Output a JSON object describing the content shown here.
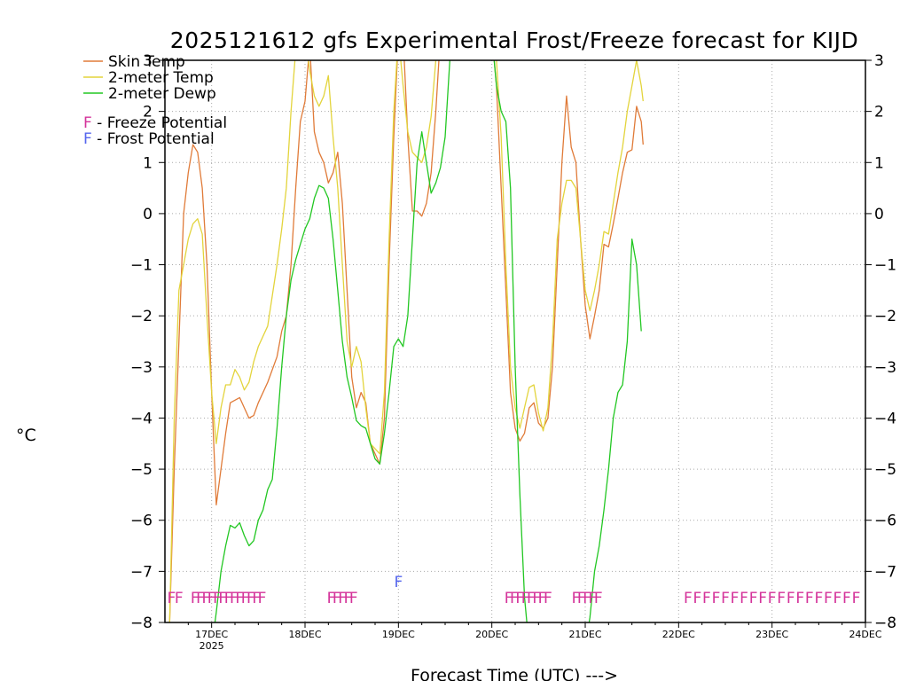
{
  "chart_data": {
    "type": "line",
    "title": "2025121612 gfs Experimental Frost/Freeze forecast for KIJD",
    "ylabel": "°C",
    "xlabel": "Forecast Time (UTC) --->",
    "ylim": [
      -8,
      3
    ],
    "xlim": [
      16.5,
      24.0
    ],
    "yticks": [
      -8,
      -7,
      -6,
      -5,
      -4,
      -3,
      -2,
      -1,
      0,
      1,
      2,
      3
    ],
    "ytick_labels": [
      "−8",
      "−7",
      "−6",
      "−5",
      "−4",
      "−3",
      "−2",
      "−1",
      "0",
      "1",
      "2",
      "3"
    ],
    "xticks": [
      {
        "x": 17,
        "label": "17DEC",
        "sublabel": "2025"
      },
      {
        "x": 18,
        "label": "18DEC"
      },
      {
        "x": 19,
        "label": "19DEC"
      },
      {
        "x": 20,
        "label": "20DEC"
      },
      {
        "x": 21,
        "label": "21DEC"
      },
      {
        "x": 22,
        "label": "22DEC"
      },
      {
        "x": 23,
        "label": "23DEC"
      },
      {
        "x": 24,
        "label": "24DEC"
      }
    ],
    "grid": true,
    "legend_position": "top-left",
    "series": [
      {
        "name": "Skin Temp",
        "color": "#e07b39",
        "points": [
          [
            16.5,
            -8.5
          ],
          [
            16.55,
            -8
          ],
          [
            16.6,
            -5
          ],
          [
            16.65,
            -2.5
          ],
          [
            16.7,
            0
          ],
          [
            16.75,
            0.8
          ],
          [
            16.8,
            1.35
          ],
          [
            16.85,
            1.2
          ],
          [
            16.9,
            0.5
          ],
          [
            16.95,
            -1
          ],
          [
            17.0,
            -3.5
          ],
          [
            17.05,
            -5.7
          ],
          [
            17.1,
            -5
          ],
          [
            17.15,
            -4.3
          ],
          [
            17.2,
            -3.7
          ],
          [
            17.3,
            -3.6
          ],
          [
            17.35,
            -3.8
          ],
          [
            17.4,
            -4
          ],
          [
            17.45,
            -3.95
          ],
          [
            17.5,
            -3.7
          ],
          [
            17.6,
            -3.3
          ],
          [
            17.7,
            -2.8
          ],
          [
            17.75,
            -2.3
          ],
          [
            17.8,
            -2.0
          ],
          [
            17.85,
            -1.0
          ],
          [
            17.9,
            0.5
          ],
          [
            17.95,
            1.8
          ],
          [
            18.0,
            2.2
          ],
          [
            18.05,
            3.3
          ],
          [
            18.1,
            1.6
          ],
          [
            18.15,
            1.2
          ],
          [
            18.2,
            1.0
          ],
          [
            18.25,
            0.6
          ],
          [
            18.3,
            0.8
          ],
          [
            18.35,
            1.2
          ],
          [
            18.4,
            0.2
          ],
          [
            18.45,
            -1.5
          ],
          [
            18.5,
            -3.2
          ],
          [
            18.55,
            -3.8
          ],
          [
            18.6,
            -3.5
          ],
          [
            18.65,
            -3.7
          ],
          [
            18.7,
            -4.5
          ],
          [
            18.8,
            -4.9
          ],
          [
            18.85,
            -4.0
          ],
          [
            18.9,
            -1
          ],
          [
            18.95,
            1.5
          ],
          [
            19.0,
            3.5
          ],
          [
            19.05,
            3.5
          ],
          [
            19.1,
            1.5
          ],
          [
            19.15,
            0.05
          ],
          [
            19.2,
            0.05
          ],
          [
            19.25,
            -0.05
          ],
          [
            19.3,
            0.2
          ],
          [
            19.35,
            0.8
          ],
          [
            19.4,
            2.0
          ],
          [
            19.45,
            3.5
          ],
          [
            20.0,
            3.5
          ],
          [
            20.05,
            2.5
          ],
          [
            20.1,
            0.5
          ],
          [
            20.15,
            -1.5
          ],
          [
            20.2,
            -3.5
          ],
          [
            20.25,
            -4.2
          ],
          [
            20.3,
            -4.45
          ],
          [
            20.35,
            -4.3
          ],
          [
            20.4,
            -3.8
          ],
          [
            20.45,
            -3.7
          ],
          [
            20.5,
            -4.1
          ],
          [
            20.55,
            -4.2
          ],
          [
            20.6,
            -4.0
          ],
          [
            20.65,
            -3.0
          ],
          [
            20.7,
            -1.0
          ],
          [
            20.75,
            1.0
          ],
          [
            20.8,
            2.3
          ],
          [
            20.85,
            1.3
          ],
          [
            20.9,
            1.0
          ],
          [
            20.95,
            -0.5
          ],
          [
            21.0,
            -1.8
          ],
          [
            21.05,
            -2.45
          ],
          [
            21.1,
            -2.0
          ],
          [
            21.15,
            -1.5
          ],
          [
            21.2,
            -0.6
          ],
          [
            21.25,
            -0.65
          ],
          [
            21.3,
            -0.2
          ],
          [
            21.35,
            0.3
          ],
          [
            21.4,
            0.8
          ],
          [
            21.45,
            1.2
          ],
          [
            21.5,
            1.25
          ],
          [
            21.55,
            2.1
          ],
          [
            21.6,
            1.8
          ],
          [
            21.62,
            1.35
          ]
        ]
      },
      {
        "name": "2-meter Temp",
        "color": "#e3d43c",
        "points": [
          [
            16.55,
            -8
          ],
          [
            16.6,
            -4
          ],
          [
            16.65,
            -1.5
          ],
          [
            16.7,
            -1.0
          ],
          [
            16.75,
            -0.5
          ],
          [
            16.8,
            -0.2
          ],
          [
            16.85,
            -0.1
          ],
          [
            16.9,
            -0.4
          ],
          [
            16.95,
            -2
          ],
          [
            17.0,
            -3.5
          ],
          [
            17.05,
            -4.5
          ],
          [
            17.1,
            -3.8
          ],
          [
            17.15,
            -3.35
          ],
          [
            17.2,
            -3.35
          ],
          [
            17.25,
            -3.05
          ],
          [
            17.3,
            -3.2
          ],
          [
            17.35,
            -3.45
          ],
          [
            17.4,
            -3.3
          ],
          [
            17.45,
            -2.9
          ],
          [
            17.5,
            -2.6
          ],
          [
            17.6,
            -2.2
          ],
          [
            17.7,
            -1.0
          ],
          [
            17.75,
            -0.3
          ],
          [
            17.8,
            0.5
          ],
          [
            17.85,
            2.0
          ],
          [
            17.9,
            3.2
          ],
          [
            17.95,
            3.5
          ],
          [
            18.0,
            3.5
          ],
          [
            18.05,
            2.8
          ],
          [
            18.1,
            2.3
          ],
          [
            18.15,
            2.1
          ],
          [
            18.2,
            2.3
          ],
          [
            18.25,
            2.7
          ],
          [
            18.3,
            1.5
          ],
          [
            18.35,
            0.5
          ],
          [
            18.4,
            -1
          ],
          [
            18.45,
            -2.5
          ],
          [
            18.5,
            -3.0
          ],
          [
            18.55,
            -2.6
          ],
          [
            18.6,
            -2.9
          ],
          [
            18.65,
            -3.8
          ],
          [
            18.7,
            -4.5
          ],
          [
            18.8,
            -4.7
          ],
          [
            18.85,
            -3.5
          ],
          [
            18.9,
            -0.5
          ],
          [
            18.95,
            2.0
          ],
          [
            19.0,
            3.5
          ],
          [
            19.05,
            2.5
          ],
          [
            19.1,
            1.6
          ],
          [
            19.15,
            1.2
          ],
          [
            19.2,
            1.1
          ],
          [
            19.25,
            1.0
          ],
          [
            19.3,
            1.3
          ],
          [
            19.35,
            1.9
          ],
          [
            19.4,
            3.0
          ],
          [
            19.45,
            3.5
          ],
          [
            20.0,
            3.5
          ],
          [
            20.05,
            3.0
          ],
          [
            20.1,
            1.5
          ],
          [
            20.15,
            -1.0
          ],
          [
            20.2,
            -3.0
          ],
          [
            20.25,
            -3.8
          ],
          [
            20.3,
            -4.2
          ],
          [
            20.35,
            -3.8
          ],
          [
            20.4,
            -3.4
          ],
          [
            20.45,
            -3.35
          ],
          [
            20.5,
            -3.9
          ],
          [
            20.55,
            -4.25
          ],
          [
            20.6,
            -3.8
          ],
          [
            20.65,
            -2.5
          ],
          [
            20.7,
            -0.5
          ],
          [
            20.75,
            0.2
          ],
          [
            20.8,
            0.65
          ],
          [
            20.85,
            0.65
          ],
          [
            20.9,
            0.5
          ],
          [
            20.95,
            -0.5
          ],
          [
            21.0,
            -1.5
          ],
          [
            21.05,
            -1.9
          ],
          [
            21.1,
            -1.5
          ],
          [
            21.15,
            -1.0
          ],
          [
            21.2,
            -0.35
          ],
          [
            21.25,
            -0.4
          ],
          [
            21.3,
            0.2
          ],
          [
            21.35,
            0.8
          ],
          [
            21.4,
            1.3
          ],
          [
            21.45,
            2.0
          ],
          [
            21.5,
            2.5
          ],
          [
            21.55,
            3.0
          ],
          [
            21.6,
            2.5
          ],
          [
            21.62,
            2.2
          ]
        ]
      },
      {
        "name": "2-meter Dewp",
        "color": "#22c722",
        "points": [
          [
            17.0,
            -8.5
          ],
          [
            17.05,
            -7.8
          ],
          [
            17.1,
            -7.0
          ],
          [
            17.15,
            -6.5
          ],
          [
            17.2,
            -6.1
          ],
          [
            17.25,
            -6.15
          ],
          [
            17.3,
            -6.05
          ],
          [
            17.35,
            -6.3
          ],
          [
            17.4,
            -6.5
          ],
          [
            17.45,
            -6.4
          ],
          [
            17.5,
            -6.0
          ],
          [
            17.55,
            -5.8
          ],
          [
            17.6,
            -5.4
          ],
          [
            17.65,
            -5.2
          ],
          [
            17.7,
            -4.2
          ],
          [
            17.75,
            -3.0
          ],
          [
            17.8,
            -2.0
          ],
          [
            17.85,
            -1.3
          ],
          [
            17.9,
            -0.9
          ],
          [
            17.95,
            -0.6
          ],
          [
            18.0,
            -0.3
          ],
          [
            18.05,
            -0.1
          ],
          [
            18.1,
            0.3
          ],
          [
            18.15,
            0.55
          ],
          [
            18.2,
            0.5
          ],
          [
            18.25,
            0.3
          ],
          [
            18.3,
            -0.5
          ],
          [
            18.35,
            -1.5
          ],
          [
            18.4,
            -2.5
          ],
          [
            18.45,
            -3.2
          ],
          [
            18.5,
            -3.6
          ],
          [
            18.55,
            -4.05
          ],
          [
            18.6,
            -4.15
          ],
          [
            18.65,
            -4.2
          ],
          [
            18.7,
            -4.5
          ],
          [
            18.75,
            -4.8
          ],
          [
            18.8,
            -4.9
          ],
          [
            18.85,
            -4.3
          ],
          [
            18.9,
            -3.5
          ],
          [
            18.95,
            -2.6
          ],
          [
            19.0,
            -2.45
          ],
          [
            19.05,
            -2.6
          ],
          [
            19.1,
            -2.0
          ],
          [
            19.15,
            -0.5
          ],
          [
            19.2,
            1.0
          ],
          [
            19.25,
            1.6
          ],
          [
            19.3,
            1.0
          ],
          [
            19.35,
            0.4
          ],
          [
            19.4,
            0.6
          ],
          [
            19.45,
            0.9
          ],
          [
            19.5,
            1.5
          ],
          [
            19.55,
            3.0
          ],
          [
            19.6,
            3.5
          ],
          [
            20.0,
            3.5
          ],
          [
            20.05,
            2.5
          ],
          [
            20.1,
            2.0
          ],
          [
            20.15,
            1.8
          ],
          [
            20.2,
            0.5
          ],
          [
            20.25,
            -3.0
          ],
          [
            20.3,
            -5.5
          ],
          [
            20.35,
            -7.5
          ],
          [
            20.4,
            -8.5
          ],
          [
            21.0,
            -8.5
          ],
          [
            21.05,
            -7.9
          ],
          [
            21.1,
            -7.0
          ],
          [
            21.15,
            -6.5
          ],
          [
            21.2,
            -5.8
          ],
          [
            21.25,
            -5.0
          ],
          [
            21.3,
            -4.0
          ],
          [
            21.35,
            -3.5
          ],
          [
            21.4,
            -3.35
          ],
          [
            21.45,
            -2.5
          ],
          [
            21.5,
            -0.5
          ],
          [
            21.55,
            -1.0
          ],
          [
            21.6,
            -2.3
          ]
        ]
      }
    ],
    "freeze_marks": [
      16.57,
      16.65,
      16.82,
      16.88,
      16.94,
      17.0,
      17.06,
      17.12,
      17.18,
      17.24,
      17.3,
      17.36,
      17.42,
      17.48,
      17.54,
      18.28,
      18.34,
      18.4,
      18.46,
      18.52,
      20.18,
      20.24,
      20.3,
      20.36,
      20.42,
      20.48,
      20.54,
      20.6,
      20.9,
      20.96,
      21.02,
      21.08,
      21.14,
      22.1,
      22.2,
      22.3,
      22.4,
      22.5,
      22.6,
      22.7,
      22.8,
      22.9,
      23.0,
      23.1,
      23.2,
      23.3,
      23.4,
      23.5,
      23.6,
      23.7,
      23.8,
      23.9
    ],
    "frost_marks": [
      {
        "x": 19.0,
        "y": -7.2
      }
    ],
    "mark_glyph": "F",
    "freeze_color": "#d4339a",
    "frost_color": "#5566ee"
  },
  "legend": {
    "items": [
      {
        "label": "Skin Temp",
        "color": "#e07b39"
      },
      {
        "label": "2-meter Temp",
        "color": "#e3d43c"
      },
      {
        "label": "2-meter Dewp",
        "color": "#22c722"
      }
    ],
    "freeze_label": "F - Freeze Potential",
    "frost_label": "F - Frost Potential"
  }
}
